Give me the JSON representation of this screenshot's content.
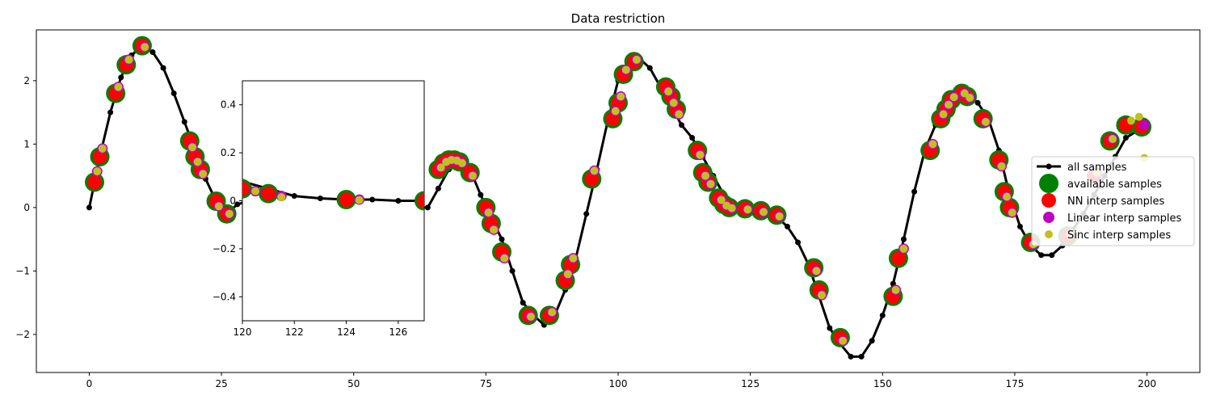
{
  "chart_data": {
    "type": "scatter",
    "title": "Data restriction",
    "xlabel": "",
    "ylabel": "",
    "xlim": [
      -10,
      210
    ],
    "ylim": [
      -2.6,
      2.8
    ],
    "xticks": [
      0,
      25,
      50,
      75,
      100,
      125,
      150,
      175,
      200
    ],
    "yticks": [
      -2,
      -1,
      0,
      1,
      2
    ],
    "grid": false,
    "legend_position": "center-right",
    "legend": [
      "all samples",
      "available samples",
      "NN interp samples",
      "Linear interp samples",
      "Sinc interp samples"
    ],
    "series": [
      {
        "name": "all samples",
        "style": "line+markers",
        "color": "#000000",
        "x": [
          0,
          2,
          4,
          6,
          8,
          10,
          12,
          14,
          16,
          18,
          20,
          22,
          24,
          26,
          28,
          30,
          32,
          34,
          36,
          38,
          40,
          42,
          44,
          46,
          48,
          50,
          52,
          54,
          56,
          58,
          60,
          62,
          64,
          66,
          68,
          70,
          72,
          74,
          76,
          78,
          80,
          82,
          84,
          86,
          88,
          90,
          92,
          94,
          96,
          98,
          100,
          102,
          104,
          106,
          108,
          110,
          112,
          114,
          116,
          118,
          120,
          122,
          124,
          126,
          128,
          130,
          132,
          134,
          136,
          138,
          140,
          142,
          144,
          146,
          148,
          150,
          152,
          154,
          156,
          158,
          160,
          162,
          164,
          166,
          168,
          170,
          172,
          174,
          176,
          178,
          180,
          182,
          184,
          186,
          188,
          190,
          192,
          194,
          196,
          198,
          200
        ],
        "y": [
          0.0,
          0.8,
          1.5,
          2.05,
          2.4,
          2.55,
          2.45,
          2.2,
          1.8,
          1.35,
          0.9,
          0.45,
          0.1,
          -0.1,
          0.05,
          0.1,
          0.05,
          0.0,
          0.0,
          0.0,
          0.0,
          0.0,
          0.0,
          0.0,
          0.0,
          0.0,
          0.0,
          0.0,
          0.0,
          0.0,
          0.0,
          0.0,
          0.0,
          0.3,
          0.6,
          0.75,
          0.6,
          0.2,
          -0.15,
          -0.5,
          -1.0,
          -1.5,
          -1.7,
          -1.85,
          -1.7,
          -1.3,
          -0.8,
          -0.1,
          0.6,
          1.35,
          2.0,
          2.3,
          2.35,
          2.2,
          1.9,
          1.6,
          1.3,
          1.1,
          0.8,
          0.5,
          0.2,
          0.05,
          0.0,
          0.0,
          -0.05,
          -0.15,
          -0.3,
          -0.55,
          -0.9,
          -1.4,
          -1.9,
          -2.15,
          -2.35,
          -2.35,
          -2.1,
          -1.7,
          -1.2,
          -0.5,
          0.25,
          0.9,
          1.3,
          1.6,
          1.75,
          1.8,
          1.65,
          1.4,
          0.9,
          0.2,
          -0.3,
          -0.6,
          -0.75,
          -0.75,
          -0.6,
          -0.35,
          -0.1,
          0.2,
          0.5,
          0.8,
          1.1,
          1.2,
          1.2
        ]
      },
      {
        "name": "available samples",
        "color": "#008000",
        "x": [
          1,
          2,
          5,
          7,
          10,
          19,
          20,
          21,
          24,
          26,
          66,
          67,
          68,
          69,
          70,
          72,
          75,
          76,
          78,
          83,
          87,
          90,
          91,
          95,
          99,
          100,
          101,
          103,
          109,
          110,
          111,
          115,
          116,
          117,
          119,
          120,
          121,
          124,
          127,
          130,
          137,
          138,
          142,
          152,
          153,
          159,
          161,
          162,
          163,
          165,
          166,
          169,
          172,
          173,
          174,
          178,
          185,
          193,
          196,
          199
        ],
        "y": [
          0.4,
          0.8,
          1.8,
          2.25,
          2.55,
          1.05,
          0.8,
          0.6,
          0.1,
          -0.1,
          0.6,
          0.7,
          0.75,
          0.75,
          0.72,
          0.55,
          0.0,
          -0.25,
          -0.7,
          -1.7,
          -1.7,
          -1.15,
          -0.9,
          0.45,
          1.4,
          1.65,
          2.1,
          2.3,
          1.9,
          1.75,
          1.55,
          0.9,
          0.55,
          0.4,
          0.15,
          0.05,
          0.0,
          -0.02,
          -0.05,
          -0.12,
          -0.95,
          -1.3,
          -2.05,
          -1.4,
          -0.8,
          0.9,
          1.4,
          1.55,
          1.7,
          1.8,
          1.75,
          1.4,
          0.75,
          0.25,
          0.0,
          -0.55,
          -0.45,
          1.05,
          1.3,
          1.27
        ]
      },
      {
        "name": "NN interp samples",
        "color": "#ff0000",
        "x": [
          1,
          2,
          5,
          7,
          10,
          19,
          20,
          21,
          24,
          26,
          66,
          67,
          68,
          69,
          70,
          72,
          75,
          76,
          78,
          83,
          87,
          90,
          91,
          95,
          99,
          100,
          101,
          103,
          109,
          110,
          111,
          115,
          116,
          117,
          119,
          120,
          121,
          124,
          127,
          130,
          137,
          138,
          142,
          152,
          153,
          159,
          161,
          162,
          163,
          165,
          166,
          169,
          172,
          173,
          174,
          178,
          185,
          190,
          193,
          196,
          199
        ],
        "y": [
          0.4,
          0.8,
          1.8,
          2.25,
          2.55,
          1.05,
          0.8,
          0.6,
          0.1,
          -0.1,
          0.6,
          0.7,
          0.75,
          0.75,
          0.72,
          0.55,
          0.0,
          -0.25,
          -0.7,
          -1.7,
          -1.7,
          -1.15,
          -0.9,
          0.45,
          1.4,
          1.65,
          2.1,
          2.3,
          1.9,
          1.75,
          1.55,
          0.9,
          0.55,
          0.4,
          0.15,
          0.05,
          0.0,
          -0.02,
          -0.05,
          -0.12,
          -0.95,
          -1.3,
          -2.05,
          -1.4,
          -0.8,
          0.9,
          1.4,
          1.55,
          1.7,
          1.8,
          1.75,
          1.4,
          0.75,
          0.25,
          0.0,
          -0.55,
          -0.45,
          0.5,
          1.05,
          1.3,
          1.27
        ]
      },
      {
        "name": "Linear interp samples",
        "color": "#c000c0",
        "x": [
          1.5,
          2.5,
          5.5,
          7.5,
          10.5,
          19.5,
          20.5,
          21.5,
          24.5,
          26.5,
          66.5,
          67.5,
          68.5,
          69.5,
          70.5,
          72.5,
          75.5,
          76.5,
          78.5,
          83.5,
          87.5,
          90.5,
          91.5,
          95.5,
          99.5,
          100.5,
          101.5,
          103.5,
          109.5,
          110.5,
          111.5,
          115.5,
          116.5,
          117.5,
          119.5,
          120.5,
          121.5,
          124.5,
          127.5,
          130.5,
          137.5,
          138.5,
          142.5,
          152.5,
          154.0,
          159.5,
          161.5,
          162.5,
          163.5,
          165.5,
          166.5,
          169.5,
          172.5,
          173.5,
          174.5,
          178.5,
          185.5,
          190.5,
          193.5,
          199.5
        ],
        "y": [
          0.57,
          0.93,
          1.9,
          2.33,
          2.53,
          0.95,
          0.72,
          0.53,
          0.02,
          -0.1,
          0.63,
          0.72,
          0.75,
          0.74,
          0.7,
          0.5,
          -0.08,
          -0.35,
          -0.8,
          -1.72,
          -1.65,
          -1.05,
          -0.8,
          0.58,
          1.52,
          1.75,
          2.17,
          2.33,
          1.83,
          1.65,
          1.47,
          0.83,
          0.5,
          0.37,
          0.12,
          0.03,
          -0.01,
          -0.03,
          -0.07,
          -0.14,
          -1.0,
          -1.38,
          -2.1,
          -1.3,
          -0.65,
          1.0,
          1.47,
          1.62,
          1.74,
          1.8,
          1.73,
          1.35,
          0.65,
          0.17,
          -0.08,
          -0.58,
          -0.43,
          0.55,
          1.08,
          1.3
        ]
      },
      {
        "name": "Sinc interp samples",
        "color": "#c0c020",
        "x": [
          1.5,
          2.5,
          5.5,
          7.5,
          10.5,
          19.5,
          20.5,
          21.5,
          24.5,
          26.5,
          66.5,
          67.5,
          68.5,
          69.5,
          70.5,
          72.5,
          75.5,
          76.5,
          78.5,
          83.5,
          87.5,
          90.5,
          91.5,
          95.5,
          99.5,
          100.5,
          101.5,
          103.5,
          109.5,
          110.5,
          111.5,
          115.5,
          116.5,
          117.5,
          119.5,
          120.5,
          121.5,
          124.5,
          127.5,
          130.5,
          137.5,
          138.5,
          142.5,
          152.5,
          154.0,
          159.5,
          161.5,
          162.5,
          163.5,
          165.5,
          166.5,
          169.5,
          172.5,
          173.5,
          174.5,
          178.5,
          185.5,
          190.5,
          193.5,
          197.0,
          198.5,
          199.5
        ],
        "y": [
          0.57,
          0.93,
          1.9,
          2.33,
          2.53,
          0.95,
          0.72,
          0.53,
          0.02,
          -0.1,
          0.63,
          0.72,
          0.75,
          0.74,
          0.7,
          0.5,
          -0.08,
          -0.35,
          -0.8,
          -1.72,
          -1.65,
          -1.05,
          -0.8,
          0.58,
          1.52,
          1.75,
          2.17,
          2.33,
          1.83,
          1.65,
          1.47,
          0.83,
          0.5,
          0.37,
          0.12,
          0.03,
          -0.01,
          -0.03,
          -0.07,
          -0.14,
          -1.0,
          -1.38,
          -2.1,
          -1.3,
          -0.65,
          1.0,
          1.47,
          1.62,
          1.74,
          1.8,
          1.73,
          1.35,
          0.65,
          0.17,
          -0.08,
          -0.58,
          -0.43,
          0.55,
          1.08,
          1.37,
          1.43,
          0.78
        ]
      }
    ],
    "inset": {
      "xlim": [
        120,
        127
      ],
      "ylim": [
        -0.5,
        0.5
      ],
      "xticks": [
        120,
        122,
        124,
        126
      ],
      "yticks": [
        -0.4,
        -0.2,
        0.0,
        0.2,
        0.4
      ],
      "all_x": [
        120,
        121,
        122,
        123,
        124,
        125,
        126,
        127
      ],
      "all_y": [
        0.08,
        0.05,
        0.02,
        0.01,
        0.005,
        0.005,
        0.0,
        0.0
      ],
      "available_x": [
        120,
        121,
        124,
        127
      ],
      "available_y": [
        0.05,
        0.03,
        0.005,
        0.0
      ],
      "linear_x": [
        120.5,
        121.5,
        124.5
      ],
      "linear_y": [
        0.04,
        0.02,
        0.005
      ],
      "sinc_x": [
        120.5,
        121.5,
        124.5,
        127.2
      ],
      "sinc_y": [
        0.04,
        0.015,
        0.003,
        0.01
      ]
    }
  }
}
